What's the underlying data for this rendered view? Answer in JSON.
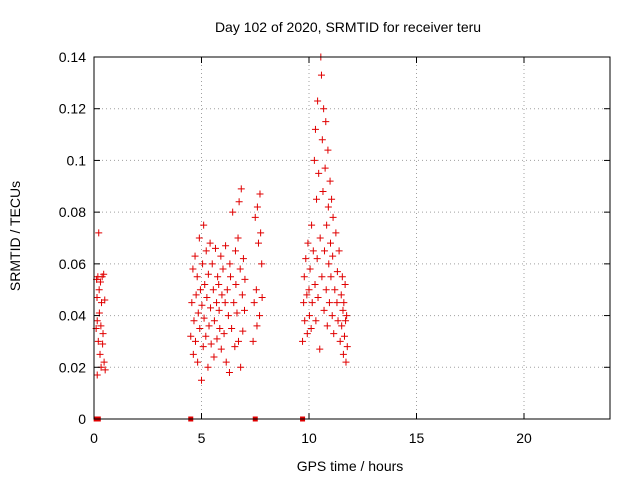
{
  "chart_data": {
    "type": "scatter",
    "title": "Day 102 of 2020, SRMTID for receiver teru",
    "xlabel": "GPS time / hours",
    "ylabel": "SRMTID / TECUs",
    "xlim": [
      0,
      24
    ],
    "ylim": [
      0,
      0.14
    ],
    "xticks": [
      0,
      5,
      10,
      15,
      20
    ],
    "xtick_labels": [
      "0",
      "5",
      "10",
      "15",
      "20"
    ],
    "yticks": [
      0,
      0.02,
      0.04,
      0.06,
      0.08,
      0.1,
      0.12,
      0.14
    ],
    "ytick_labels": [
      "0",
      "0.02",
      "0.04",
      "0.06",
      "0.08",
      "0.1",
      "0.12",
      "0.14"
    ],
    "grid": true,
    "marker": "plus",
    "color": "#e00000",
    "points": [
      [
        0.1,
        0.035
      ],
      [
        0.12,
        0.054
      ],
      [
        0.14,
        0.047
      ],
      [
        0.15,
        0.038
      ],
      [
        0.18,
        0.055
      ],
      [
        0.2,
        0.03
      ],
      [
        0.22,
        0.072
      ],
      [
        0.25,
        0.041
      ],
      [
        0.28,
        0.025
      ],
      [
        0.3,
        0.053
      ],
      [
        0.32,
        0.036
      ],
      [
        0.33,
        0.02
      ],
      [
        0.35,
        0.045
      ],
      [
        0.38,
        0.055
      ],
      [
        0.4,
        0.029
      ],
      [
        0.42,
        0.033
      ],
      [
        0.45,
        0.056
      ],
      [
        0.47,
        0.022
      ],
      [
        0.5,
        0.046
      ],
      [
        0.52,
        0.019
      ],
      [
        0.15,
        0.017
      ],
      [
        0.24,
        0.05
      ],
      [
        4.5,
        0.032
      ],
      [
        4.55,
        0.045
      ],
      [
        4.6,
        0.058
      ],
      [
        4.62,
        0.025
      ],
      [
        4.65,
        0.038
      ],
      [
        4.7,
        0.063
      ],
      [
        4.72,
        0.03
      ],
      [
        4.75,
        0.048
      ],
      [
        4.8,
        0.055
      ],
      [
        4.82,
        0.022
      ],
      [
        4.85,
        0.041
      ],
      [
        4.9,
        0.07
      ],
      [
        4.92,
        0.035
      ],
      [
        4.95,
        0.05
      ],
      [
        5.0,
        0.015
      ],
      [
        5.02,
        0.044
      ],
      [
        5.05,
        0.06
      ],
      [
        5.08,
        0.028
      ],
      [
        5.1,
        0.075
      ],
      [
        5.12,
        0.039
      ],
      [
        5.15,
        0.052
      ],
      [
        5.2,
        0.032
      ],
      [
        5.22,
        0.065
      ],
      [
        5.25,
        0.047
      ],
      [
        5.3,
        0.02
      ],
      [
        5.32,
        0.056
      ],
      [
        5.35,
        0.036
      ],
      [
        5.4,
        0.068
      ],
      [
        5.42,
        0.043
      ],
      [
        5.45,
        0.029
      ],
      [
        5.5,
        0.06
      ],
      [
        5.55,
        0.05
      ],
      [
        5.58,
        0.024
      ],
      [
        5.6,
        0.038
      ],
      [
        5.65,
        0.066
      ],
      [
        5.7,
        0.045
      ],
      [
        5.72,
        0.031
      ],
      [
        5.75,
        0.055
      ],
      [
        5.8,
        0.052
      ],
      [
        5.82,
        0.042
      ],
      [
        5.85,
        0.035
      ],
      [
        5.9,
        0.063
      ],
      [
        5.92,
        0.027
      ],
      [
        5.95,
        0.048
      ],
      [
        6.0,
        0.058
      ],
      [
        6.05,
        0.033
      ],
      [
        6.1,
        0.045
      ],
      [
        6.12,
        0.067
      ],
      [
        6.15,
        0.022
      ],
      [
        6.2,
        0.05
      ],
      [
        6.25,
        0.04
      ],
      [
        6.3,
        0.018
      ],
      [
        6.32,
        0.06
      ],
      [
        6.35,
        0.055
      ],
      [
        6.4,
        0.035
      ],
      [
        6.45,
        0.08
      ],
      [
        6.5,
        0.045
      ],
      [
        6.55,
        0.028
      ],
      [
        6.58,
        0.065
      ],
      [
        6.6,
        0.052
      ],
      [
        6.65,
        0.041
      ],
      [
        6.7,
        0.07
      ],
      [
        6.72,
        0.03
      ],
      [
        6.75,
        0.084
      ],
      [
        6.8,
        0.058
      ],
      [
        6.82,
        0.02
      ],
      [
        6.85,
        0.089
      ],
      [
        6.9,
        0.048
      ],
      [
        6.92,
        0.034
      ],
      [
        6.95,
        0.062
      ],
      [
        7.0,
        0.042
      ],
      [
        7.02,
        0.054
      ],
      [
        7.4,
        0.03
      ],
      [
        7.45,
        0.045
      ],
      [
        7.5,
        0.078
      ],
      [
        7.55,
        0.05
      ],
      [
        7.58,
        0.036
      ],
      [
        7.6,
        0.082
      ],
      [
        7.65,
        0.068
      ],
      [
        7.7,
        0.04
      ],
      [
        7.72,
        0.087
      ],
      [
        7.75,
        0.072
      ],
      [
        7.8,
        0.06
      ],
      [
        7.82,
        0.047
      ],
      [
        9.7,
        0.03
      ],
      [
        9.75,
        0.045
      ],
      [
        9.78,
        0.055
      ],
      [
        9.8,
        0.038
      ],
      [
        9.85,
        0.062
      ],
      [
        9.9,
        0.048
      ],
      [
        9.92,
        0.033
      ],
      [
        9.95,
        0.068
      ],
      [
        10.0,
        0.05
      ],
      [
        10.02,
        0.04
      ],
      [
        10.05,
        0.058
      ],
      [
        10.1,
        0.035
      ],
      [
        10.12,
        0.075
      ],
      [
        10.15,
        0.045
      ],
      [
        10.2,
        0.065
      ],
      [
        10.25,
        0.1
      ],
      [
        10.28,
        0.052
      ],
      [
        10.3,
        0.112
      ],
      [
        10.32,
        0.038
      ],
      [
        10.35,
        0.085
      ],
      [
        10.38,
        0.062
      ],
      [
        10.4,
        0.123
      ],
      [
        10.42,
        0.047
      ],
      [
        10.45,
        0.095
      ],
      [
        10.5,
        0.027
      ],
      [
        10.52,
        0.07
      ],
      [
        10.55,
        0.14
      ],
      [
        10.58,
        0.133
      ],
      [
        10.6,
        0.055
      ],
      [
        10.62,
        0.108
      ],
      [
        10.65,
        0.088
      ],
      [
        10.68,
        0.12
      ],
      [
        10.7,
        0.042
      ],
      [
        10.72,
        0.065
      ],
      [
        10.75,
        0.097
      ],
      [
        10.78,
        0.115
      ],
      [
        10.8,
        0.05
      ],
      [
        10.82,
        0.075
      ],
      [
        10.85,
        0.036
      ],
      [
        10.88,
        0.104
      ],
      [
        10.9,
        0.082
      ],
      [
        10.92,
        0.06
      ],
      [
        10.95,
        0.045
      ],
      [
        10.98,
        0.092
      ],
      [
        11.0,
        0.068
      ],
      [
        11.02,
        0.055
      ],
      [
        11.05,
        0.085
      ],
      [
        11.08,
        0.04
      ],
      [
        11.1,
        0.063
      ],
      [
        11.12,
        0.078
      ],
      [
        11.15,
        0.033
      ],
      [
        11.2,
        0.05
      ],
      [
        11.25,
        0.072
      ],
      [
        11.3,
        0.045
      ],
      [
        11.32,
        0.057
      ],
      [
        11.35,
        0.038
      ],
      [
        11.4,
        0.065
      ],
      [
        11.45,
        0.03
      ],
      [
        11.5,
        0.048
      ],
      [
        11.52,
        0.036
      ],
      [
        11.55,
        0.055
      ],
      [
        11.58,
        0.042
      ],
      [
        11.6,
        0.025
      ],
      [
        11.62,
        0.045
      ],
      [
        11.65,
        0.032
      ],
      [
        11.68,
        0.052
      ],
      [
        11.7,
        0.038
      ],
      [
        11.72,
        0.022
      ],
      [
        11.75,
        0.04
      ],
      [
        11.78,
        0.028
      ]
    ],
    "edge_markers_x": [
      0.1,
      0.2,
      4.5,
      7.5,
      9.7
    ]
  }
}
